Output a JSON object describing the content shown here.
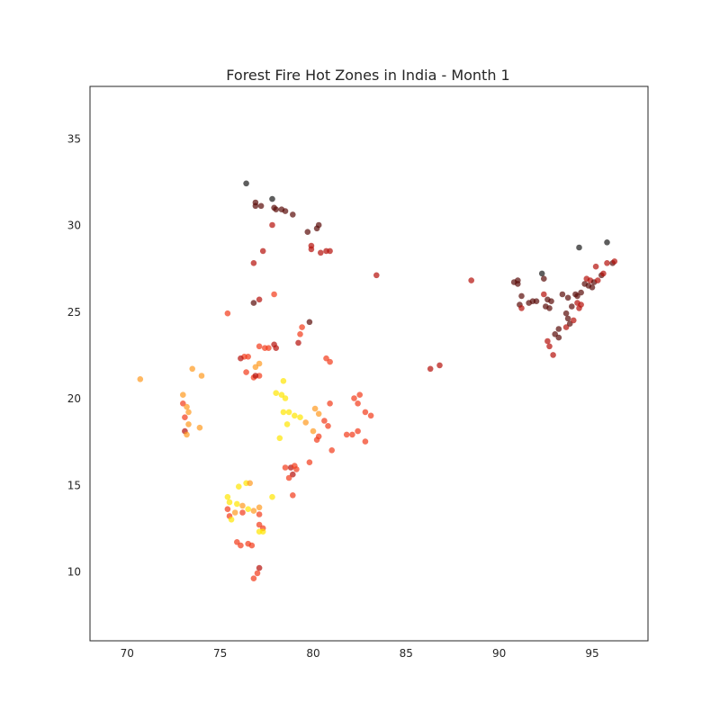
{
  "chart_data": {
    "type": "scatter",
    "title": "Forest Fire Hot Zones in India - Month 1",
    "xlabel": "",
    "ylabel": "",
    "xlim": [
      68,
      98
    ],
    "ylim": [
      6,
      38
    ],
    "xticks": [
      70,
      75,
      80,
      85,
      90,
      95
    ],
    "yticks": [
      10,
      15,
      20,
      25,
      30,
      35
    ],
    "grid": false,
    "colormap": [
      "#ffe600",
      "#ff9a1f",
      "#f23b1a",
      "#b50f0a",
      "#5a0b08",
      "#1a1a1a"
    ],
    "points": [
      {
        "x": 76.4,
        "y": 32.4,
        "c": 5
      },
      {
        "x": 76.9,
        "y": 31.3,
        "c": 4
      },
      {
        "x": 77.2,
        "y": 31.1,
        "c": 4
      },
      {
        "x": 76.9,
        "y": 31.1,
        "c": 4
      },
      {
        "x": 77.8,
        "y": 31.5,
        "c": 5
      },
      {
        "x": 77.9,
        "y": 31.0,
        "c": 4
      },
      {
        "x": 78.0,
        "y": 30.9,
        "c": 4
      },
      {
        "x": 78.3,
        "y": 30.9,
        "c": 4
      },
      {
        "x": 78.5,
        "y": 30.8,
        "c": 4
      },
      {
        "x": 78.9,
        "y": 30.6,
        "c": 4
      },
      {
        "x": 77.8,
        "y": 30.0,
        "c": 3
      },
      {
        "x": 80.3,
        "y": 30.0,
        "c": 4
      },
      {
        "x": 80.2,
        "y": 29.8,
        "c": 4
      },
      {
        "x": 79.7,
        "y": 29.6,
        "c": 4
      },
      {
        "x": 79.9,
        "y": 28.8,
        "c": 3
      },
      {
        "x": 79.9,
        "y": 28.6,
        "c": 3
      },
      {
        "x": 80.4,
        "y": 28.4,
        "c": 3
      },
      {
        "x": 80.7,
        "y": 28.5,
        "c": 3
      },
      {
        "x": 80.9,
        "y": 28.5,
        "c": 3
      },
      {
        "x": 77.3,
        "y": 28.5,
        "c": 3
      },
      {
        "x": 76.8,
        "y": 27.8,
        "c": 3
      },
      {
        "x": 83.4,
        "y": 27.1,
        "c": 3
      },
      {
        "x": 77.9,
        "y": 26.0,
        "c": 2
      },
      {
        "x": 77.1,
        "y": 25.7,
        "c": 3
      },
      {
        "x": 76.8,
        "y": 25.5,
        "c": 4
      },
      {
        "x": 75.4,
        "y": 24.9,
        "c": 2
      },
      {
        "x": 79.8,
        "y": 24.4,
        "c": 4
      },
      {
        "x": 79.4,
        "y": 24.1,
        "c": 2
      },
      {
        "x": 79.3,
        "y": 23.7,
        "c": 2
      },
      {
        "x": 79.2,
        "y": 23.2,
        "c": 3
      },
      {
        "x": 77.9,
        "y": 23.1,
        "c": 3
      },
      {
        "x": 77.1,
        "y": 23.0,
        "c": 2
      },
      {
        "x": 77.4,
        "y": 22.9,
        "c": 2
      },
      {
        "x": 77.6,
        "y": 22.9,
        "c": 2
      },
      {
        "x": 78.0,
        "y": 22.9,
        "c": 3
      },
      {
        "x": 76.3,
        "y": 22.4,
        "c": 2
      },
      {
        "x": 76.5,
        "y": 22.4,
        "c": 2
      },
      {
        "x": 76.1,
        "y": 22.3,
        "c": 3
      },
      {
        "x": 80.7,
        "y": 22.3,
        "c": 2
      },
      {
        "x": 80.9,
        "y": 22.1,
        "c": 2
      },
      {
        "x": 77.1,
        "y": 22.0,
        "c": 1
      },
      {
        "x": 76.9,
        "y": 21.8,
        "c": 1
      },
      {
        "x": 76.4,
        "y": 21.5,
        "c": 2
      },
      {
        "x": 76.8,
        "y": 21.2,
        "c": 2
      },
      {
        "x": 77.1,
        "y": 21.3,
        "c": 2
      },
      {
        "x": 76.9,
        "y": 21.3,
        "c": 3
      },
      {
        "x": 73.5,
        "y": 21.7,
        "c": 1
      },
      {
        "x": 74.0,
        "y": 21.3,
        "c": 1
      },
      {
        "x": 70.7,
        "y": 21.1,
        "c": 1
      },
      {
        "x": 78.4,
        "y": 21.0,
        "c": 0
      },
      {
        "x": 73.0,
        "y": 20.2,
        "c": 1
      },
      {
        "x": 78.0,
        "y": 20.3,
        "c": 0
      },
      {
        "x": 78.3,
        "y": 20.2,
        "c": 0
      },
      {
        "x": 78.5,
        "y": 20.0,
        "c": 0
      },
      {
        "x": 82.5,
        "y": 20.2,
        "c": 2
      },
      {
        "x": 82.2,
        "y": 20.0,
        "c": 2
      },
      {
        "x": 83.1,
        "y": 19.0,
        "c": 2
      },
      {
        "x": 82.8,
        "y": 19.2,
        "c": 2
      },
      {
        "x": 82.4,
        "y": 19.7,
        "c": 2
      },
      {
        "x": 73.0,
        "y": 19.7,
        "c": 2
      },
      {
        "x": 73.2,
        "y": 19.5,
        "c": 1
      },
      {
        "x": 73.3,
        "y": 19.2,
        "c": 1
      },
      {
        "x": 73.1,
        "y": 18.9,
        "c": 2
      },
      {
        "x": 73.3,
        "y": 18.5,
        "c": 1
      },
      {
        "x": 73.1,
        "y": 18.1,
        "c": 3
      },
      {
        "x": 73.2,
        "y": 17.9,
        "c": 1
      },
      {
        "x": 73.9,
        "y": 18.3,
        "c": 1
      },
      {
        "x": 80.1,
        "y": 19.4,
        "c": 1
      },
      {
        "x": 80.3,
        "y": 19.1,
        "c": 1
      },
      {
        "x": 80.9,
        "y": 19.7,
        "c": 2
      },
      {
        "x": 78.4,
        "y": 19.2,
        "c": 0
      },
      {
        "x": 78.7,
        "y": 19.2,
        "c": 0
      },
      {
        "x": 79.0,
        "y": 19.0,
        "c": 0
      },
      {
        "x": 79.3,
        "y": 18.9,
        "c": 0
      },
      {
        "x": 79.6,
        "y": 18.6,
        "c": 1
      },
      {
        "x": 78.6,
        "y": 18.5,
        "c": 0
      },
      {
        "x": 80.6,
        "y": 18.7,
        "c": 2
      },
      {
        "x": 80.8,
        "y": 18.4,
        "c": 2
      },
      {
        "x": 80.0,
        "y": 18.1,
        "c": 1
      },
      {
        "x": 80.3,
        "y": 17.8,
        "c": 2
      },
      {
        "x": 80.2,
        "y": 17.6,
        "c": 2
      },
      {
        "x": 82.4,
        "y": 18.1,
        "c": 2
      },
      {
        "x": 82.1,
        "y": 17.9,
        "c": 2
      },
      {
        "x": 81.8,
        "y": 17.9,
        "c": 2
      },
      {
        "x": 82.8,
        "y": 17.5,
        "c": 2
      },
      {
        "x": 81.0,
        "y": 17.0,
        "c": 2
      },
      {
        "x": 78.2,
        "y": 17.7,
        "c": 0
      },
      {
        "x": 79.8,
        "y": 16.3,
        "c": 2
      },
      {
        "x": 78.5,
        "y": 16.0,
        "c": 2
      },
      {
        "x": 78.8,
        "y": 16.0,
        "c": 3
      },
      {
        "x": 79.0,
        "y": 16.1,
        "c": 2
      },
      {
        "x": 79.1,
        "y": 15.9,
        "c": 2
      },
      {
        "x": 78.9,
        "y": 15.6,
        "c": 3
      },
      {
        "x": 78.7,
        "y": 15.4,
        "c": 2
      },
      {
        "x": 78.9,
        "y": 14.4,
        "c": 2
      },
      {
        "x": 76.4,
        "y": 15.1,
        "c": 0
      },
      {
        "x": 76.6,
        "y": 15.1,
        "c": 1
      },
      {
        "x": 76.0,
        "y": 14.9,
        "c": 0
      },
      {
        "x": 75.4,
        "y": 14.3,
        "c": 0
      },
      {
        "x": 75.5,
        "y": 14.0,
        "c": 0
      },
      {
        "x": 75.9,
        "y": 13.9,
        "c": 0
      },
      {
        "x": 76.2,
        "y": 13.8,
        "c": 1
      },
      {
        "x": 76.5,
        "y": 13.6,
        "c": 0
      },
      {
        "x": 77.1,
        "y": 13.7,
        "c": 1
      },
      {
        "x": 76.8,
        "y": 13.5,
        "c": 1
      },
      {
        "x": 76.2,
        "y": 13.4,
        "c": 2
      },
      {
        "x": 75.4,
        "y": 13.6,
        "c": 2
      },
      {
        "x": 75.5,
        "y": 13.2,
        "c": 2
      },
      {
        "x": 75.8,
        "y": 13.4,
        "c": 1
      },
      {
        "x": 77.1,
        "y": 13.3,
        "c": 2
      },
      {
        "x": 75.6,
        "y": 13.0,
        "c": 0
      },
      {
        "x": 77.8,
        "y": 14.3,
        "c": 0
      },
      {
        "x": 77.1,
        "y": 12.7,
        "c": 2
      },
      {
        "x": 77.3,
        "y": 12.5,
        "c": 2
      },
      {
        "x": 77.1,
        "y": 12.3,
        "c": 0
      },
      {
        "x": 77.3,
        "y": 12.3,
        "c": 0
      },
      {
        "x": 75.9,
        "y": 11.7,
        "c": 2
      },
      {
        "x": 76.1,
        "y": 11.5,
        "c": 2
      },
      {
        "x": 76.5,
        "y": 11.6,
        "c": 2
      },
      {
        "x": 76.7,
        "y": 11.5,
        "c": 2
      },
      {
        "x": 77.1,
        "y": 10.2,
        "c": 3
      },
      {
        "x": 77.0,
        "y": 9.9,
        "c": 2
      },
      {
        "x": 76.8,
        "y": 9.6,
        "c": 2
      },
      {
        "x": 86.3,
        "y": 21.7,
        "c": 3
      },
      {
        "x": 86.8,
        "y": 21.9,
        "c": 3
      },
      {
        "x": 88.5,
        "y": 26.8,
        "c": 3
      },
      {
        "x": 90.8,
        "y": 26.7,
        "c": 4
      },
      {
        "x": 91.0,
        "y": 26.6,
        "c": 4
      },
      {
        "x": 91.0,
        "y": 26.8,
        "c": 4
      },
      {
        "x": 91.2,
        "y": 25.9,
        "c": 4
      },
      {
        "x": 91.1,
        "y": 25.4,
        "c": 4
      },
      {
        "x": 91.2,
        "y": 25.2,
        "c": 3
      },
      {
        "x": 91.6,
        "y": 25.5,
        "c": 4
      },
      {
        "x": 91.8,
        "y": 25.6,
        "c": 4
      },
      {
        "x": 92.0,
        "y": 25.6,
        "c": 4
      },
      {
        "x": 92.3,
        "y": 27.2,
        "c": 5
      },
      {
        "x": 92.4,
        "y": 26.9,
        "c": 4
      },
      {
        "x": 92.4,
        "y": 26.0,
        "c": 3
      },
      {
        "x": 92.6,
        "y": 25.7,
        "c": 4
      },
      {
        "x": 92.5,
        "y": 25.3,
        "c": 4
      },
      {
        "x": 92.8,
        "y": 25.6,
        "c": 4
      },
      {
        "x": 92.7,
        "y": 25.2,
        "c": 4
      },
      {
        "x": 92.6,
        "y": 23.3,
        "c": 3
      },
      {
        "x": 92.7,
        "y": 23.0,
        "c": 3
      },
      {
        "x": 92.9,
        "y": 22.5,
        "c": 3
      },
      {
        "x": 93.0,
        "y": 23.7,
        "c": 4
      },
      {
        "x": 93.2,
        "y": 24.0,
        "c": 4
      },
      {
        "x": 93.2,
        "y": 23.5,
        "c": 4
      },
      {
        "x": 93.4,
        "y": 26.0,
        "c": 4
      },
      {
        "x": 93.6,
        "y": 24.9,
        "c": 4
      },
      {
        "x": 93.7,
        "y": 24.6,
        "c": 4
      },
      {
        "x": 93.6,
        "y": 24.1,
        "c": 3
      },
      {
        "x": 93.8,
        "y": 24.3,
        "c": 4
      },
      {
        "x": 93.7,
        "y": 25.8,
        "c": 4
      },
      {
        "x": 93.9,
        "y": 25.3,
        "c": 4
      },
      {
        "x": 94.0,
        "y": 24.5,
        "c": 3
      },
      {
        "x": 94.1,
        "y": 26.0,
        "c": 4
      },
      {
        "x": 94.3,
        "y": 28.7,
        "c": 5
      },
      {
        "x": 94.2,
        "y": 25.9,
        "c": 4
      },
      {
        "x": 94.4,
        "y": 26.1,
        "c": 4
      },
      {
        "x": 94.2,
        "y": 25.5,
        "c": 3
      },
      {
        "x": 94.3,
        "y": 25.2,
        "c": 3
      },
      {
        "x": 94.4,
        "y": 25.4,
        "c": 3
      },
      {
        "x": 94.6,
        "y": 26.6,
        "c": 4
      },
      {
        "x": 94.7,
        "y": 26.9,
        "c": 3
      },
      {
        "x": 94.8,
        "y": 26.5,
        "c": 4
      },
      {
        "x": 94.9,
        "y": 26.8,
        "c": 3
      },
      {
        "x": 95.0,
        "y": 26.4,
        "c": 4
      },
      {
        "x": 95.1,
        "y": 26.7,
        "c": 4
      },
      {
        "x": 95.2,
        "y": 27.6,
        "c": 3
      },
      {
        "x": 95.3,
        "y": 26.8,
        "c": 3
      },
      {
        "x": 95.5,
        "y": 27.1,
        "c": 4
      },
      {
        "x": 95.6,
        "y": 27.2,
        "c": 3
      },
      {
        "x": 95.8,
        "y": 29.0,
        "c": 5
      },
      {
        "x": 95.8,
        "y": 27.8,
        "c": 3
      },
      {
        "x": 96.1,
        "y": 27.8,
        "c": 4
      },
      {
        "x": 96.2,
        "y": 27.9,
        "c": 3
      }
    ]
  }
}
